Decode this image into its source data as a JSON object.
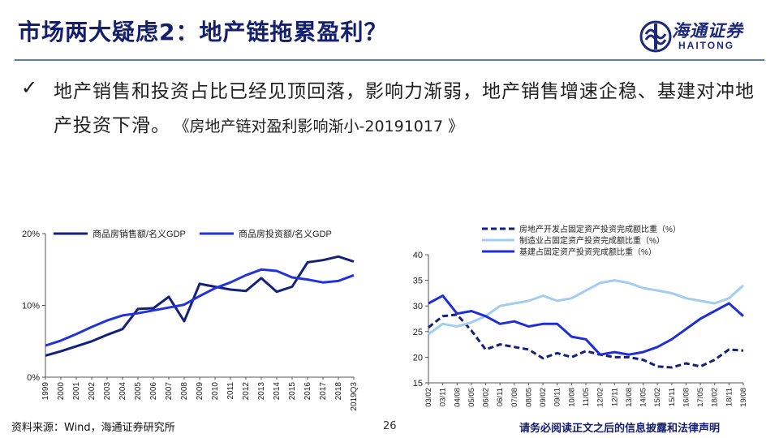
{
  "header": {
    "title": "市场两大疑虑2：地产链拖累盈利？",
    "logo_cn": "海通证券",
    "logo_en": "HAITONG"
  },
  "bullet": {
    "check": "✓",
    "text": "地产销售和投资占比已经见顶回落，影响力渐弱，地产销售增速企稳、基建对冲地产投资下滑。",
    "reference": "《房地产链对盈利影响渐小-20191017 》"
  },
  "footer": {
    "source": "资料来源：Wind，海通证券研究所",
    "page": "26",
    "disclaimer": "请务必阅读正文之后的信息披露和法律声明"
  },
  "chart_data": [
    {
      "type": "line",
      "title": "",
      "ylim": [
        0,
        20
      ],
      "yticks": [
        "0%",
        "10%",
        "20%"
      ],
      "x": [
        "1999",
        "2000",
        "2001",
        "2002",
        "2003",
        "2004",
        "2005",
        "2006",
        "2007",
        "2008",
        "2009",
        "2010",
        "2011",
        "2012",
        "2013",
        "2014",
        "2015",
        "2016",
        "2017",
        "2018",
        "2019Q3"
      ],
      "legend_position": "top",
      "series": [
        {
          "name": "商品房销售额/名义GDP",
          "color": "#13217a",
          "values": [
            3.0,
            3.6,
            4.3,
            5.0,
            5.9,
            6.7,
            9.5,
            9.6,
            11.2,
            7.8,
            13.0,
            12.6,
            12.2,
            12.0,
            13.8,
            11.9,
            12.6,
            16.0,
            16.3,
            16.8,
            16.1
          ]
        },
        {
          "name": "商品房投资额/名义GDP",
          "color": "#2233dd",
          "values": [
            4.4,
            5.1,
            6.0,
            7.0,
            7.9,
            8.6,
            8.9,
            9.3,
            9.7,
            10.1,
            11.3,
            12.4,
            13.2,
            14.2,
            15.0,
            14.8,
            13.9,
            13.6,
            13.2,
            13.4,
            14.2
          ]
        }
      ]
    },
    {
      "type": "line",
      "title": "",
      "ylim": [
        15,
        40
      ],
      "yticks": [
        "15",
        "20",
        "25",
        "30",
        "35",
        "40"
      ],
      "x": [
        "03/02",
        "03/11",
        "04/08",
        "05/05",
        "06/02",
        "06/11",
        "07/08",
        "08/05",
        "09/02",
        "09/11",
        "10/08",
        "11/05",
        "12/02",
        "12/11",
        "13/08",
        "14/05",
        "15/02",
        "15/11",
        "16/08",
        "17/05",
        "18/02",
        "18/11",
        "19/08"
      ],
      "legend_position": "top",
      "series": [
        {
          "name": "房地产开发占固定资产投资完成额比重（%）",
          "color": "#13217a",
          "dash": true,
          "values": [
            25.8,
            28.0,
            28.3,
            25.2,
            21.5,
            22.5,
            22.0,
            21.5,
            19.8,
            20.8,
            20.0,
            21.2,
            20.5,
            20.0,
            20.0,
            19.5,
            18.2,
            18.0,
            18.8,
            18.2,
            19.5,
            21.5,
            21.3
          ]
        },
        {
          "name": "制造业占固定资产投资完成额比重（%）",
          "color": "#a3ccf2",
          "values": [
            24.5,
            26.5,
            26.0,
            26.8,
            28.0,
            30.0,
            30.5,
            31.0,
            32.0,
            31.0,
            31.5,
            33.0,
            34.5,
            35.0,
            34.5,
            33.5,
            33.0,
            32.5,
            31.5,
            31.0,
            30.5,
            31.5,
            34.0
          ]
        },
        {
          "name": "基建占固定资产投资完成额比重（%）",
          "color": "#1f2fd8",
          "values": [
            30.5,
            32.0,
            28.5,
            29.0,
            28.0,
            26.5,
            27.0,
            26.0,
            26.5,
            26.5,
            24.0,
            23.5,
            20.5,
            21.0,
            20.5,
            21.0,
            22.0,
            23.5,
            25.5,
            27.5,
            29.0,
            30.5,
            28.0
          ]
        }
      ]
    }
  ]
}
